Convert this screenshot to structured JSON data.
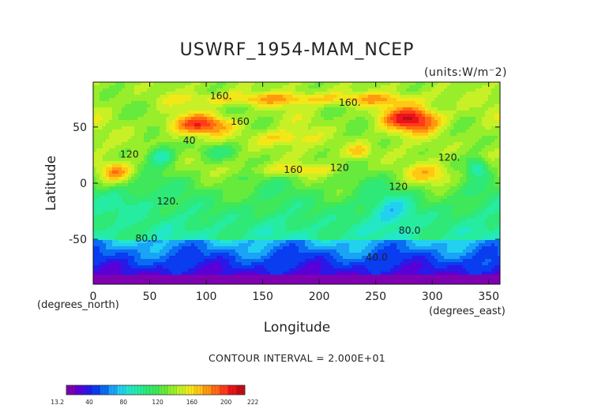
{
  "chart_data": {
    "type": "heatmap",
    "subtype": "filled-contour-map",
    "title": "USWRF_1954-MAM_NCEP",
    "units": "(units:W/m^2)",
    "xlabel": "Longitude",
    "ylabel": "Latitude",
    "x_units_note": "(degrees_east)",
    "y_units_note": "(degrees_north)",
    "xlim": [
      0,
      360
    ],
    "ylim": [
      -90,
      90
    ],
    "x_ticks": [
      0,
      50,
      100,
      150,
      200,
      250,
      300,
      350
    ],
    "y_ticks": [
      -50,
      0,
      50
    ],
    "contour_interval_text": "CONTOUR INTERVAL = 2.000E+01",
    "contour_labels": [
      {
        "text": "160.",
        "lon": 113,
        "lat": 75
      },
      {
        "text": "160.",
        "lon": 227,
        "lat": 69
      },
      {
        "text": "160",
        "lon": 130,
        "lat": 52
      },
      {
        "text": "160",
        "lon": 177,
        "lat": 9
      },
      {
        "text": "120",
        "lon": 218,
        "lat": 11
      },
      {
        "text": "120.",
        "lon": 315,
        "lat": 20
      },
      {
        "text": "120",
        "lon": 32,
        "lat": 23
      },
      {
        "text": "120",
        "lon": 270,
        "lat": -6
      },
      {
        "text": "120.",
        "lon": 66,
        "lat": -19
      },
      {
        "text": "80.0",
        "lon": 47,
        "lat": -52
      },
      {
        "text": "80.0",
        "lon": 280,
        "lat": -45
      },
      {
        "text": "40.0",
        "lon": 251,
        "lat": -69
      },
      {
        "text": "40",
        "lon": 85,
        "lat": 35
      }
    ],
    "colorbar": {
      "min": 13.2,
      "max": 222,
      "tick_labels": [
        "13.2",
        "40",
        "80",
        "120",
        "160",
        "200",
        "222"
      ],
      "tick_values": [
        13.2,
        40,
        80,
        120,
        160,
        200,
        222
      ],
      "colors": [
        "#7f00b0",
        "#5a00d6",
        "#2a18e8",
        "#0a3cf0",
        "#0a6cf2",
        "#1aa4f6",
        "#22d0f0",
        "#22e8c8",
        "#26eca0",
        "#2ee878",
        "#3ee85a",
        "#66ea3c",
        "#98ee2a",
        "#c8f026",
        "#f2e818",
        "#ffc814",
        "#ff9a10",
        "#ff6a10",
        "#ff3c18",
        "#e8141c",
        "#c40c14"
      ]
    },
    "grid": false,
    "legend": "colorbar bottom-left"
  }
}
